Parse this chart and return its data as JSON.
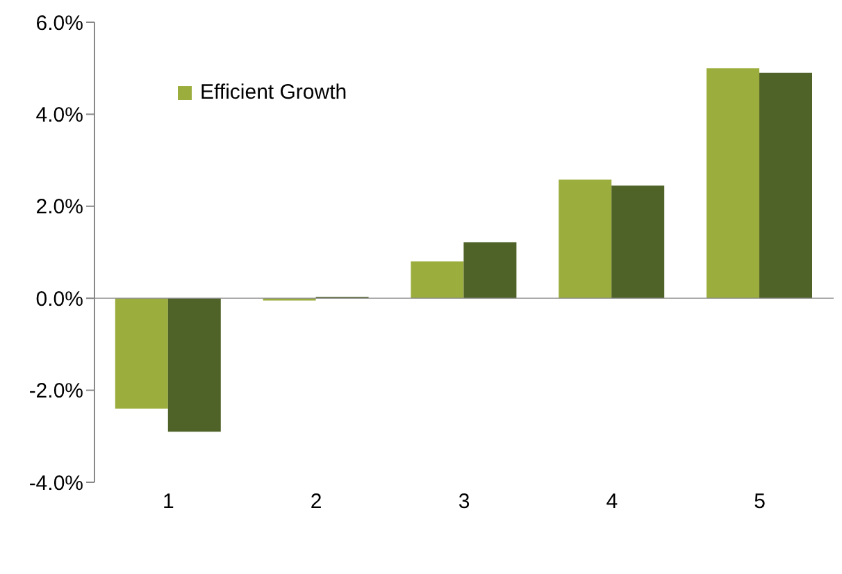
{
  "chart_data": {
    "type": "bar",
    "categories": [
      "1",
      "2",
      "3",
      "4",
      "5"
    ],
    "series": [
      {
        "name": "Efficient Growth",
        "color": "#9bad3c",
        "values": [
          -2.4,
          -0.05,
          0.8,
          2.58,
          5.0
        ]
      },
      {
        "color": "#4f6228",
        "values": [
          -2.9,
          0.03,
          1.22,
          2.45,
          4.9
        ]
      }
    ],
    "ylim": [
      -4,
      6
    ],
    "yticks": [
      {
        "value": -4,
        "label": "-4.0%"
      },
      {
        "value": -2,
        "label": "-2.0%"
      },
      {
        "value": 0,
        "label": "0.0%"
      },
      {
        "value": 2,
        "label": "2.0%"
      },
      {
        "value": 4,
        "label": "4.0%"
      },
      {
        "value": 6,
        "label": "6.0%"
      }
    ],
    "legend": "top left"
  }
}
